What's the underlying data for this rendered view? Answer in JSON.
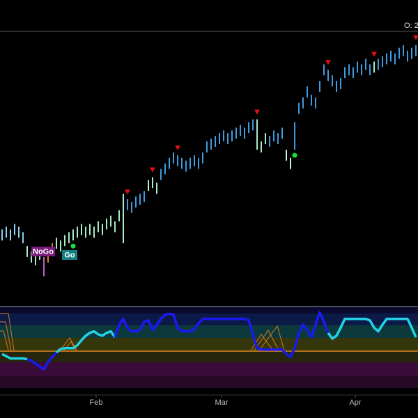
{
  "chart_data": [
    {
      "type": "ohlc",
      "header_text": "O: 2",
      "xlim": [
        0,
        100
      ],
      "ylim": [
        0,
        100
      ],
      "high": [
        28,
        29,
        28,
        30,
        29,
        27,
        22,
        20,
        19,
        21,
        18,
        20,
        23,
        25,
        24,
        26,
        27,
        28,
        29,
        30,
        29,
        30,
        29,
        31,
        30,
        32,
        33,
        31,
        35,
        41,
        39,
        38,
        40,
        41,
        42,
        46,
        47,
        45,
        50,
        52,
        54,
        56,
        55,
        54,
        53,
        54,
        55,
        54,
        56,
        60,
        61,
        62,
        63,
        64,
        63,
        64,
        65,
        66,
        65,
        67,
        68,
        68,
        60,
        63,
        62,
        64,
        63,
        65,
        57,
        54,
        67,
        74,
        76,
        80,
        77,
        76,
        82,
        88,
        86,
        84,
        82,
        83,
        87,
        88,
        87,
        89,
        88,
        90,
        88,
        89,
        90,
        91,
        92,
        93,
        92,
        94,
        95,
        93,
        94,
        95
      ],
      "low": [
        24,
        25,
        24,
        26,
        25,
        23,
        18,
        16,
        15,
        17,
        11,
        16,
        19,
        21,
        20,
        22,
        23,
        24,
        25,
        26,
        25,
        26,
        25,
        27,
        26,
        28,
        29,
        27,
        31,
        23,
        35,
        34,
        36,
        37,
        38,
        42,
        43,
        41,
        46,
        48,
        50,
        52,
        51,
        50,
        49,
        50,
        51,
        50,
        52,
        56,
        57,
        58,
        59,
        60,
        59,
        60,
        61,
        62,
        61,
        63,
        64,
        57,
        56,
        59,
        58,
        60,
        59,
        61,
        53,
        50,
        57,
        70,
        72,
        76,
        73,
        72,
        78,
        84,
        82,
        80,
        78,
        79,
        83,
        84,
        83,
        85,
        84,
        86,
        84,
        85,
        86,
        87,
        88,
        89,
        88,
        90,
        91,
        89,
        90,
        91
      ],
      "bar_colors": [
        "#8fd0f0",
        "#8fd0f0",
        "#8fd0f0",
        "#8fd0f0",
        "#8fd0f0",
        "#8fd0f0",
        "#a8ecc8",
        "#a8ecc8",
        "#a8ecc8",
        "#a8ecc8",
        "#c060c0",
        "#e08030",
        "#e08030",
        "#a8ecc8",
        "#a8ecc8",
        "#a8ecc8",
        "#a8ecc8",
        "#a8ecc8",
        "#a8ecc8",
        "#a8ecc8",
        "#a8ecc8",
        "#a8ecc8",
        "#a8ecc8",
        "#a8ecc8",
        "#a8ecc8",
        "#a8ecc8",
        "#a8ecc8",
        "#a8ecc8",
        "#a8ecc8",
        "#a8ecc8",
        "#3d9be0",
        "#3d9be0",
        "#3d9be0",
        "#3d9be0",
        "#3d9be0",
        "#a8ecc8",
        "#a8ecc8",
        "#a8ecc8",
        "#3d9be0",
        "#3d9be0",
        "#3d9be0",
        "#3d9be0",
        "#3d9be0",
        "#3d9be0",
        "#3d9be0",
        "#3d9be0",
        "#3d9be0",
        "#3d9be0",
        "#3d9be0",
        "#3d9be0",
        "#3d9be0",
        "#3d9be0",
        "#3d9be0",
        "#3d9be0",
        "#3d9be0",
        "#3d9be0",
        "#3d9be0",
        "#3d9be0",
        "#3d9be0",
        "#3d9be0",
        "#3d9be0",
        "#a8ecc8",
        "#a8ecc8",
        "#a8ecc8",
        "#3d9be0",
        "#3d9be0",
        "#3d9be0",
        "#3d9be0",
        "#d0f0e0",
        "#d0f0e0",
        "#3d9be0",
        "#3d9be0",
        "#3d9be0",
        "#3d9be0",
        "#3d9be0",
        "#3d9be0",
        "#3d9be0",
        "#3d9be0",
        "#3d9be0",
        "#3d9be0",
        "#3d9be0",
        "#3d9be0",
        "#3d9be0",
        "#3d9be0",
        "#3d9be0",
        "#3d9be0",
        "#3d9be0",
        "#3d9be0",
        "#3d9be0",
        "#a8ecc8",
        "#3d9be0",
        "#3d9be0",
        "#3d9be0",
        "#3d9be0",
        "#3d9be0",
        "#3d9be0",
        "#3d9be0",
        "#3d9be0",
        "#3d9be0",
        "#3d9be0"
      ],
      "down_markers": [
        30,
        36,
        42,
        61,
        78,
        89,
        99
      ],
      "go_dots": [
        17,
        70
      ],
      "annotations": [
        "NoGo",
        "Go"
      ]
    },
    {
      "type": "line",
      "xlim": [
        0,
        100
      ],
      "ylim": [
        -6,
        6
      ],
      "xticks": [
        {
          "value": 23,
          "label": "Feb"
        },
        {
          "value": 53,
          "label": "Mar"
        },
        {
          "value": 85,
          "label": "Apr"
        }
      ],
      "series": [
        {
          "color": "#22d3e6",
          "values": [
            -0.4,
            -0.7,
            -1.0,
            -1.0,
            -1.0,
            -1.0,
            -1.1,
            null,
            null,
            null,
            null,
            null,
            null,
            -0.2,
            0.3,
            0.4,
            0.4,
            0.4,
            0.8,
            1.5,
            2.1,
            2.5,
            2.7,
            2.3,
            2.1,
            2.5,
            2.7,
            1.9,
            null,
            null,
            null,
            null,
            null,
            null,
            null,
            null,
            null,
            null,
            null,
            null,
            null,
            null,
            null,
            null,
            null,
            null,
            null,
            null,
            null,
            null,
            null,
            null,
            null,
            null,
            null,
            null,
            null,
            null,
            null,
            null,
            null,
            null,
            null,
            null,
            null,
            null,
            null,
            null,
            null,
            null,
            null,
            null,
            null,
            null,
            null,
            null,
            null,
            null,
            2.5,
            1.7,
            2.1,
            3.2,
            4.4,
            4.4,
            4.4,
            4.4,
            4.4,
            4.4,
            4.2,
            3.2,
            2.7,
            3.6,
            4.4,
            4.4,
            4.4,
            4.4,
            4.4,
            4.4,
            3.2,
            1.9
          ]
        },
        {
          "color": "#1a1af0",
          "values": [
            null,
            null,
            null,
            null,
            null,
            null,
            -1.1,
            -1.3,
            -1.7,
            -2.1,
            -2.5,
            -1.5,
            -0.8,
            -0.2,
            null,
            null,
            null,
            null,
            null,
            null,
            null,
            null,
            null,
            null,
            null,
            null,
            null,
            1.9,
            3.6,
            4.4,
            3.2,
            2.7,
            2.7,
            2.9,
            4.0,
            4.2,
            2.9,
            3.6,
            4.4,
            5.0,
            5.1,
            5.0,
            3.2,
            2.7,
            2.7,
            2.7,
            3.0,
            3.8,
            4.4,
            4.4,
            4.4,
            4.4,
            4.4,
            4.4,
            4.4,
            4.4,
            4.4,
            4.4,
            4.4,
            4.2,
            2.3,
            0.4,
            0.2,
            0.2,
            0.2,
            0.2,
            0.2,
            0.2,
            -0.4,
            -0.8,
            0.4,
            2.5,
            3.6,
            2.9,
            1.9,
            3.6,
            5.3,
            4.0,
            2.5,
            null,
            null,
            null,
            null,
            null,
            null,
            null,
            null,
            null,
            null,
            null,
            null,
            null,
            null,
            null,
            null,
            null,
            null,
            null,
            null,
            null
          ]
        }
      ]
    }
  ]
}
